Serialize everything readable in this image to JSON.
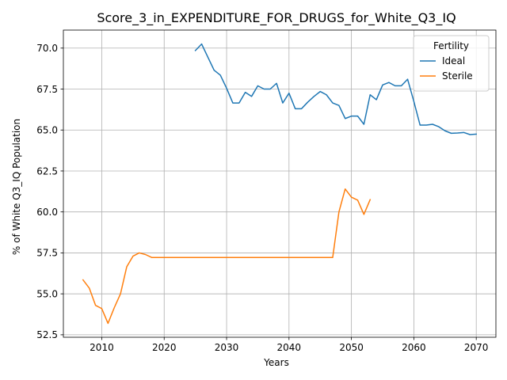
{
  "chart_data": {
    "type": "line",
    "title": "Score_3_in_EXPENDITURE_FOR_DRUGS_for_White_Q3_IQ",
    "xlabel": "Years",
    "ylabel": "% of White Q3_IQ Population",
    "xlim": [
      2003.85,
      2073.15
    ],
    "ylim": [
      52.35,
      71.1
    ],
    "xticks": [
      2010,
      2020,
      2030,
      2040,
      2050,
      2060,
      2070
    ],
    "yticks": [
      52.5,
      55.0,
      57.5,
      60.0,
      62.5,
      65.0,
      67.5,
      70.0
    ],
    "ytick_labels": [
      "52.5",
      "55.0",
      "57.5",
      "60.0",
      "62.5",
      "65.0",
      "67.5",
      "70.0"
    ],
    "grid": true,
    "legend": {
      "title": "Fertility",
      "position": "top-right"
    },
    "series": [
      {
        "name": "Ideal",
        "color": "#1f77b4",
        "x": [
          2025,
          2026,
          2027,
          2028,
          2029,
          2030,
          2031,
          2032,
          2033,
          2034,
          2035,
          2036,
          2037,
          2038,
          2039,
          2040,
          2041,
          2042,
          2043,
          2044,
          2045,
          2046,
          2047,
          2048,
          2049,
          2050,
          2051,
          2052,
          2053,
          2054,
          2055,
          2056,
          2057,
          2058,
          2059,
          2060,
          2061,
          2062,
          2063,
          2064,
          2065,
          2066,
          2067,
          2068,
          2069,
          2070
        ],
        "values": [
          69.85,
          70.25,
          69.45,
          68.65,
          68.35,
          67.55,
          66.65,
          66.65,
          67.3,
          67.05,
          67.7,
          67.5,
          67.5,
          67.85,
          66.65,
          67.25,
          66.3,
          66.3,
          66.7,
          67.05,
          67.35,
          67.15,
          66.65,
          66.5,
          65.7,
          65.85,
          65.85,
          65.35,
          67.15,
          66.85,
          67.75,
          67.9,
          67.7,
          67.7,
          68.1,
          66.75,
          65.3,
          65.3,
          65.35,
          65.2,
          64.95,
          64.8,
          64.82,
          64.85,
          64.72,
          64.75
        ]
      },
      {
        "name": "Sterile",
        "color": "#ff7f0e",
        "x": [
          2007,
          2008,
          2009,
          2010,
          2011,
          2012,
          2013,
          2014,
          2015,
          2016,
          2017,
          2018,
          2019,
          2020,
          2021,
          2022,
          2023,
          2024,
          2025,
          2026,
          2027,
          2028,
          2029,
          2030,
          2031,
          2032,
          2033,
          2034,
          2035,
          2036,
          2037,
          2038,
          2039,
          2040,
          2041,
          2042,
          2043,
          2044,
          2045,
          2046,
          2047,
          2048,
          2049,
          2050,
          2051,
          2052,
          2053
        ],
        "values": [
          55.85,
          55.35,
          54.3,
          54.1,
          53.2,
          54.15,
          55.0,
          56.65,
          57.3,
          57.5,
          57.4,
          57.22,
          57.22,
          57.22,
          57.22,
          57.22,
          57.22,
          57.22,
          57.22,
          57.22,
          57.22,
          57.22,
          57.22,
          57.22,
          57.22,
          57.22,
          57.22,
          57.22,
          57.22,
          57.22,
          57.22,
          57.22,
          57.22,
          57.22,
          57.22,
          57.22,
          57.22,
          57.22,
          57.22,
          57.22,
          57.22,
          60.0,
          61.4,
          60.9,
          60.72,
          59.85,
          60.75
        ]
      }
    ]
  }
}
